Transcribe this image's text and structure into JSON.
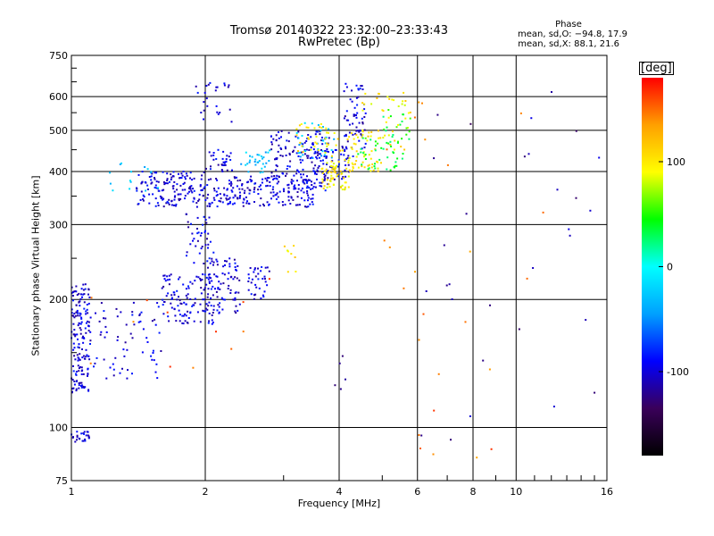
{
  "chart_data": {
    "type": "scatter",
    "title": "Tromsø 20140322 23:32:00–23:33:43",
    "subtitle": "RwPretec (Bp)",
    "xlabel": "Frequency [MHz]",
    "ylabel": "Stationary phase Virtual Height [km]",
    "x_scale": "log",
    "y_scale": "log",
    "xlim": [
      1,
      16
    ],
    "ylim": [
      75,
      750
    ],
    "x_ticks": [
      1,
      2,
      4,
      6,
      8,
      10,
      16
    ],
    "y_ticks": [
      75,
      100,
      200,
      300,
      400,
      500,
      600,
      750
    ],
    "grid": true,
    "legend": {
      "heading": "Phase",
      "lines": [
        "mean, sd,O: −94.8, 17.9",
        "mean, sd,X:  88.1, 21.6"
      ],
      "placement": "top-right"
    },
    "colorbar": {
      "unit": "[deg]",
      "range": [
        -180,
        180
      ],
      "ticks": [
        -100,
        0,
        100
      ],
      "colors": [
        "#000000",
        "#3a005a",
        "#0000ff",
        "#00a0ff",
        "#00ffff",
        "#00ff00",
        "#ffff00",
        "#ffa000",
        "#ff0000"
      ]
    },
    "series": [
      {
        "phase": -100,
        "clusters": [
          {
            "x": [
              1.0,
              1.1
            ],
            "y": [
              120,
              220
            ],
            "n": 160
          },
          {
            "x": [
              1.0,
              1.1
            ],
            "y": [
              92,
              98
            ],
            "n": 25
          },
          {
            "x": [
              1.1,
              1.6
            ],
            "y": [
              130,
              200
            ],
            "n": 70
          },
          {
            "x": [
              1.6,
              2.1
            ],
            "y": [
              175,
              230
            ],
            "n": 120
          },
          {
            "x": [
              2.0,
              2.4
            ],
            "y": [
              185,
              250
            ],
            "n": 80
          },
          {
            "x": [
              2.5,
              2.8
            ],
            "y": [
              200,
              240
            ],
            "n": 35
          },
          {
            "x": [
              1.4,
              2.0
            ],
            "y": [
              330,
              400
            ],
            "n": 150
          },
          {
            "x": [
              2.0,
              3.5
            ],
            "y": [
              330,
              390
            ],
            "n": 200
          },
          {
            "x": [
              1.8,
              2.1
            ],
            "y": [
              240,
              330
            ],
            "n": 40
          },
          {
            "x": [
              2.8,
              3.8
            ],
            "y": [
              360,
              500
            ],
            "n": 150
          },
          {
            "x": [
              3.5,
              4.3
            ],
            "y": [
              380,
              460
            ],
            "n": 60
          },
          {
            "x": [
              4.1,
              4.6
            ],
            "y": [
              450,
              650
            ],
            "n": 60
          },
          {
            "x": [
              1.9,
              2.3
            ],
            "y": [
              520,
              660
            ],
            "n": 25
          },
          {
            "x": [
              2.0,
              2.3
            ],
            "y": [
              400,
              450
            ],
            "n": 30
          }
        ]
      },
      {
        "phase": -30,
        "clusters": [
          {
            "x": [
              2.4,
              2.8
            ],
            "y": [
              390,
              450
            ],
            "n": 30
          },
          {
            "x": [
              1.2,
              1.6
            ],
            "y": [
              360,
              420
            ],
            "n": 15
          },
          {
            "x": [
              3.2,
              3.9
            ],
            "y": [
              430,
              520
            ],
            "n": 30
          }
        ]
      },
      {
        "phase": 100,
        "clusters": [
          {
            "x": [
              3.6,
              4.3
            ],
            "y": [
              360,
              420
            ],
            "n": 50
          },
          {
            "x": [
              3.8,
              5.0
            ],
            "y": [
              400,
              500
            ],
            "n": 70
          },
          {
            "x": [
              4.4,
              5.8
            ],
            "y": [
              450,
              620
            ],
            "n": 40
          },
          {
            "x": [
              3.2,
              3.8
            ],
            "y": [
              440,
              520
            ],
            "n": 30
          },
          {
            "x": [
              3.0,
              3.2
            ],
            "y": [
              230,
              280
            ],
            "n": 8
          }
        ]
      },
      {
        "phase": 40,
        "clusters": [
          {
            "x": [
              4.4,
              5.6
            ],
            "y": [
              400,
              480
            ],
            "n": 40
          },
          {
            "x": [
              5.0,
              5.8
            ],
            "y": [
              460,
              560
            ],
            "n": 20
          }
        ]
      },
      {
        "phase": -115,
        "clusters": [
          {
            "x": [
              6.0,
              16.0
            ],
            "y": [
              78,
              620
            ],
            "n": 30
          },
          {
            "x": [
              3.9,
              4.2
            ],
            "y": [
              110,
              150
            ],
            "n": 5
          }
        ]
      },
      {
        "phase": 150,
        "clusters": [
          {
            "x": [
              4.2,
              12.0
            ],
            "y": [
              80,
              620
            ],
            "n": 25
          },
          {
            "x": [
              1.1,
              3.0
            ],
            "y": [
              100,
              240
            ],
            "n": 12
          }
        ]
      }
    ]
  }
}
